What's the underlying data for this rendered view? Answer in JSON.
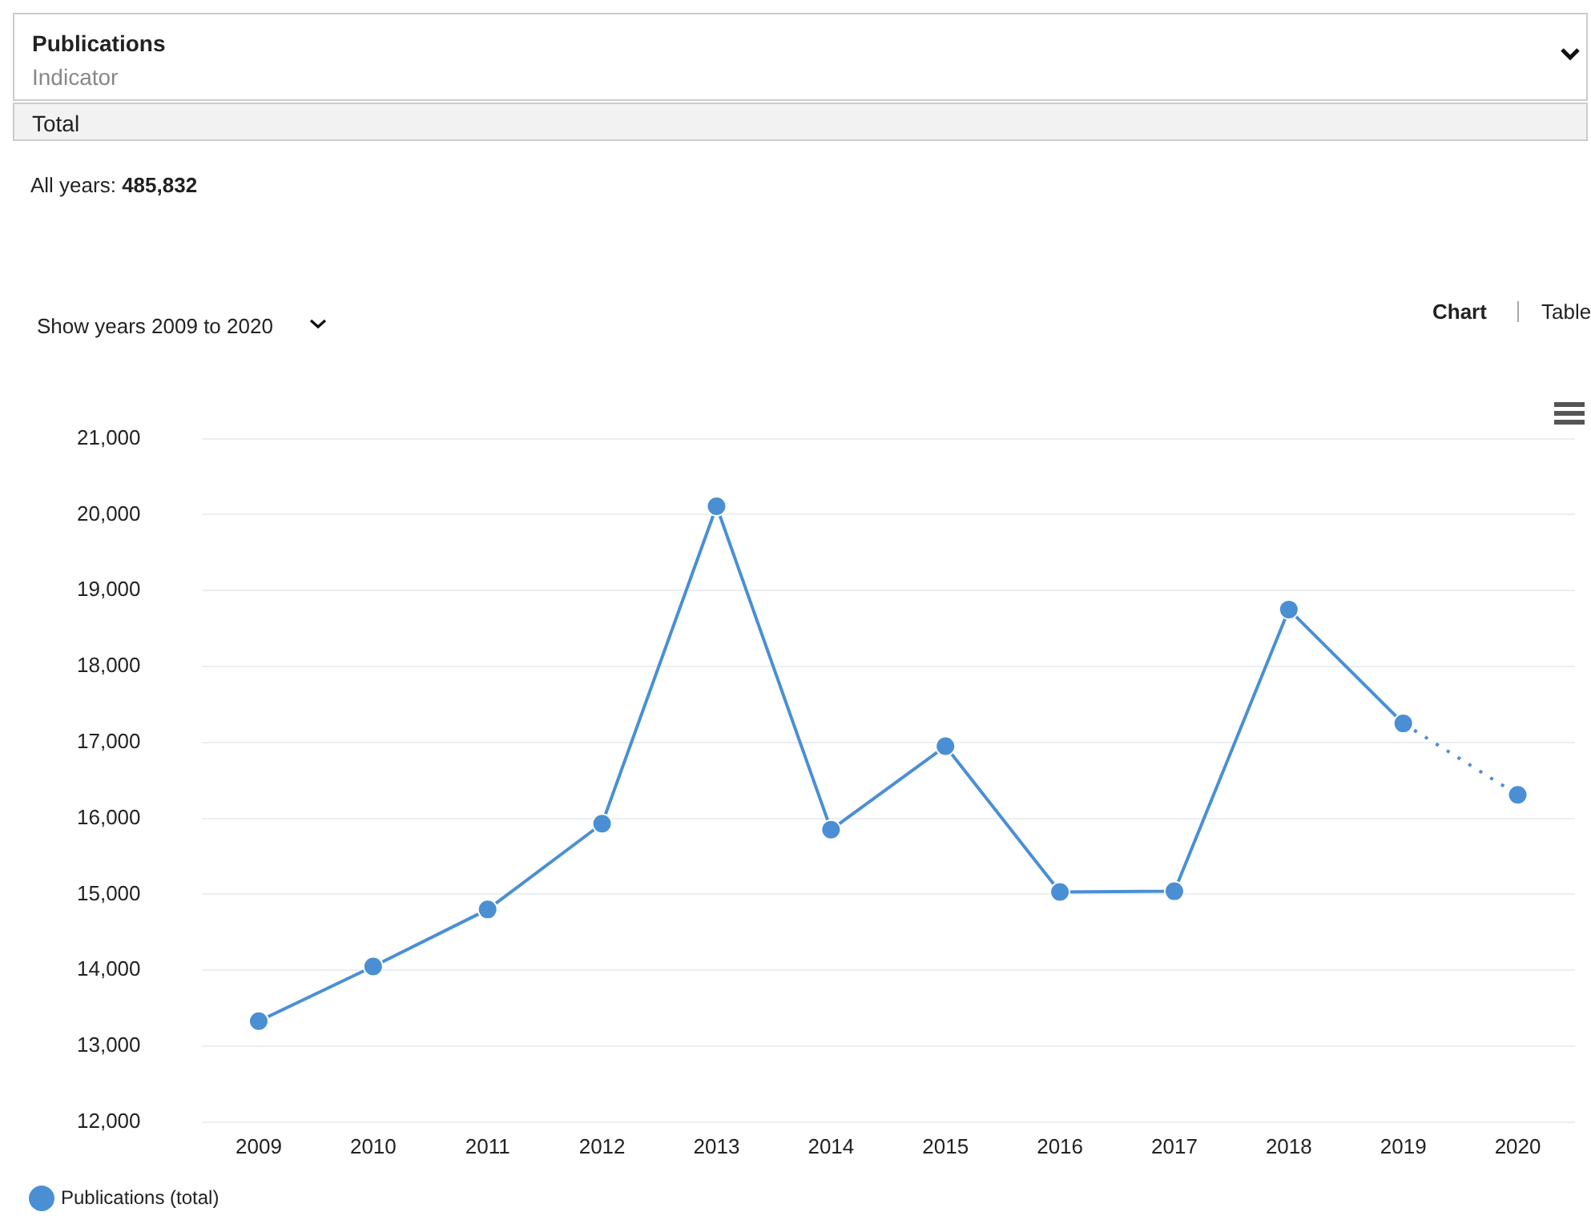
{
  "chart_data": {
    "type": "line",
    "title": "Publications",
    "subtitle": "Indicator",
    "annotations": [
      "Total",
      "All years: 485,832",
      "Show years 2009 to 2020",
      "Chart",
      "Table"
    ],
    "categories": [
      "2009",
      "2010",
      "2011",
      "2012",
      "2013",
      "2014",
      "2015",
      "2016",
      "2017",
      "2018",
      "2019",
      "2020"
    ],
    "series": [
      {
        "name": "Publications (total)",
        "color": "#4a8fd4",
        "marker": "circle",
        "line_style": "solid",
        "values": [
          13330,
          14050,
          14800,
          15930,
          20110,
          15850,
          16950,
          15030,
          15040,
          18750,
          17250,
          null
        ]
      },
      {
        "color": "#4a8fd4",
        "marker": "circle",
        "line_style": "dotted",
        "values": [
          null,
          null,
          null,
          null,
          null,
          null,
          null,
          null,
          null,
          null,
          17250,
          16310
        ]
      }
    ],
    "ylim": [
      12000,
      21000
    ],
    "yticks": [
      {
        "value": 12000,
        "label": "12,000"
      },
      {
        "value": 13000,
        "label": "13,000"
      },
      {
        "value": 14000,
        "label": "14,000"
      },
      {
        "value": 15000,
        "label": "15,000"
      },
      {
        "value": 16000,
        "label": "16,000"
      },
      {
        "value": 17000,
        "label": "17,000"
      },
      {
        "value": 18000,
        "label": "18,000"
      },
      {
        "value": 19000,
        "label": "19,000"
      },
      {
        "value": 20000,
        "label": "20,000"
      },
      {
        "value": 21000,
        "label": "21,000"
      }
    ],
    "grid": "y",
    "legend": "bottom left"
  }
}
